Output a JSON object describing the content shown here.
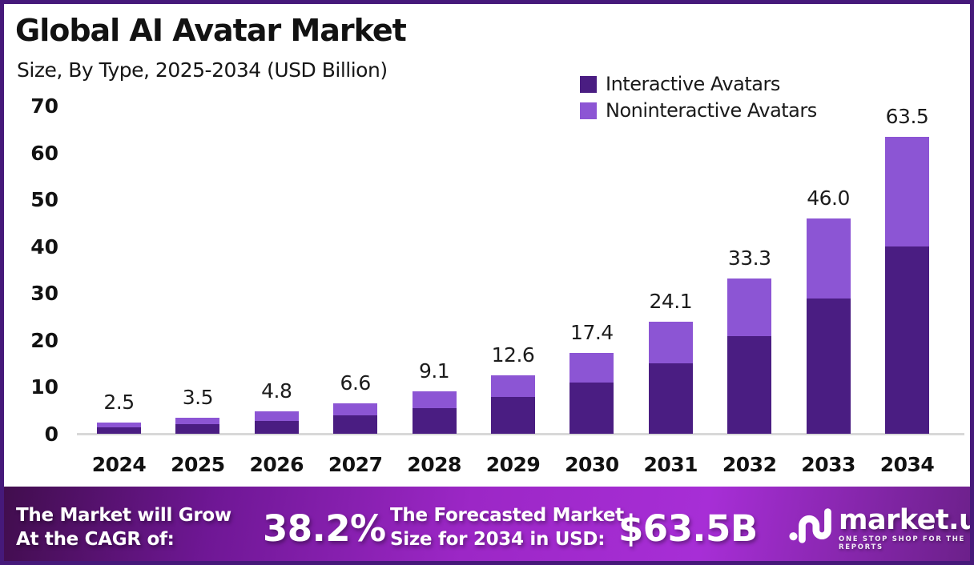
{
  "page": {
    "border_color": "#46197a",
    "background_color": "#ffffff"
  },
  "header": {
    "title": "Global AI Avatar Market",
    "subtitle": "Size, By Type, 2025-2034 (USD Billion)"
  },
  "legend": [
    {
      "label": "Interactive Avatars",
      "color": "#4a1d82"
    },
    {
      "label": "Noninteractive Avatars",
      "color": "#8c55d4"
    }
  ],
  "chart_data": {
    "type": "bar",
    "stacked": true,
    "title": "Global AI Avatar Market Size, By Type, 2025-2034 (USD Billion)",
    "categories": [
      "2024",
      "2025",
      "2026",
      "2027",
      "2028",
      "2029",
      "2030",
      "2031",
      "2032",
      "2033",
      "2034"
    ],
    "series": [
      {
        "name": "Interactive Avatars",
        "color": "#4a1d82",
        "values": [
          1.4,
          2.1,
          2.9,
          4.1,
          5.6,
          7.9,
          11.0,
          15.2,
          21.0,
          29.0,
          40.0
        ]
      },
      {
        "name": "Noninteractive Avatars",
        "color": "#8c55d4",
        "values": [
          1.1,
          1.4,
          1.9,
          2.5,
          3.5,
          4.7,
          6.4,
          8.9,
          12.3,
          17.0,
          23.5
        ]
      }
    ],
    "totals": [
      2.5,
      3.5,
      4.8,
      6.6,
      9.1,
      12.6,
      17.4,
      24.1,
      33.3,
      46.0,
      63.5
    ],
    "totals_display": [
      "2.5",
      "3.5",
      "4.8",
      "6.6",
      "9.1",
      "12.6",
      "17.4",
      "24.1",
      "33.3",
      "46.0",
      "63.5"
    ],
    "yticks": [
      0,
      10,
      20,
      30,
      40,
      50,
      60,
      70
    ],
    "ylim": [
      0,
      70
    ],
    "xlabel": "",
    "ylabel": "",
    "grid": false,
    "legend_position": "top-right"
  },
  "footer": {
    "cagr_label_line1": "The Market will Grow",
    "cagr_label_line2": "At the CAGR of:",
    "cagr_value": "38.2%",
    "forecast_label_line1": "The Forecasted Market",
    "forecast_label_line2": "Size for 2034 in USD:",
    "forecast_value": "$63.5B",
    "brand": {
      "name": "market.us",
      "tagline": "ONE STOP SHOP FOR THE REPORTS",
      "logo_icon": "market-us-wave-mark"
    }
  }
}
